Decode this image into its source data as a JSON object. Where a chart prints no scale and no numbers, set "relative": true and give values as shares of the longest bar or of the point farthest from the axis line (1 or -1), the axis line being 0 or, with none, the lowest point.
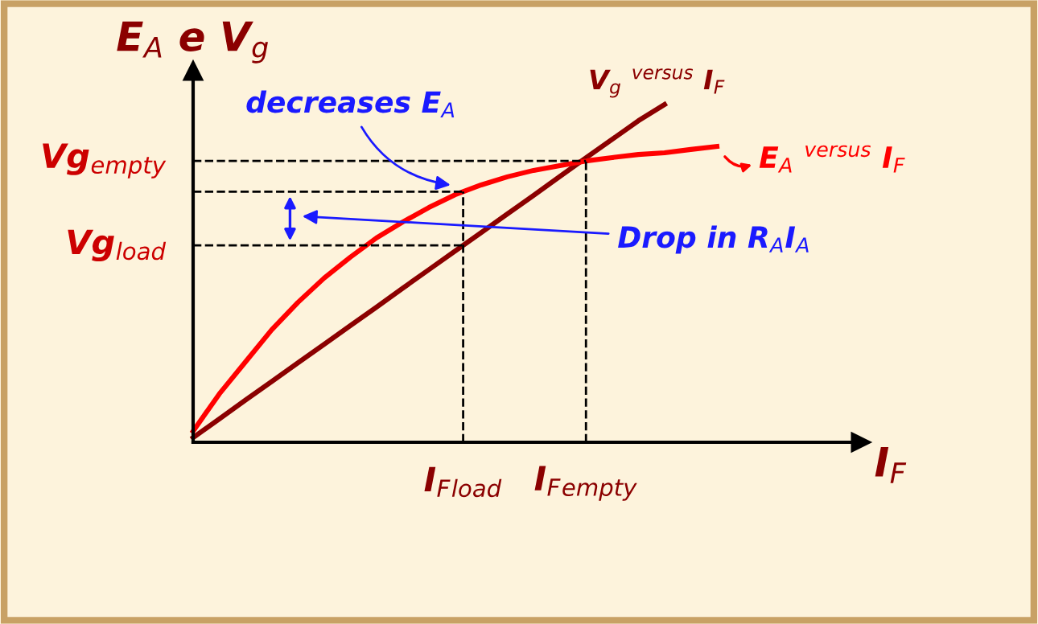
{
  "chart_data": {
    "type": "line",
    "relative": true,
    "xlabel": "I$_{F}$",
    "ylabel": "E$_{A}$ e V$_{g}$",
    "grid": false,
    "marker": "none",
    "line_style": "solid",
    "categories": [
      null,
      null,
      null,
      null,
      null,
      null,
      null,
      null,
      null,
      null,
      null,
      null,
      null,
      null,
      null,
      null,
      null,
      null,
      null,
      null,
      null
    ],
    "series": [
      {
        "name": "V$_{g}$ $^{versus}$ I$_{F}$",
        "color": "#8b0000",
        "values": [
          0.014,
          0.069,
          0.125,
          0.18,
          0.235,
          0.29,
          0.345,
          0.4,
          0.456,
          0.511,
          0.566,
          0.621,
          0.676,
          0.731,
          0.787,
          0.842,
          0.897,
          0.952,
          1.0,
          null,
          null
        ]
      },
      {
        "name": "E$_{A}$ $^{versus}$ I$_{F}$",
        "color": "#ff0000",
        "values": [
          0.033,
          0.143,
          0.238,
          0.333,
          0.414,
          0.486,
          0.548,
          0.605,
          0.652,
          0.695,
          0.733,
          0.762,
          0.786,
          0.805,
          0.819,
          0.833,
          0.843,
          0.852,
          0.857,
          0.867,
          0.876
        ]
      }
    ],
    "ref_lines": [
      {
        "axis": "y",
        "value": 0.833,
        "label": "Vg$_{empty}$",
        "color": "#000000",
        "line_style": "dashed"
      },
      {
        "axis": "y",
        "value": 0.742,
        "label": null,
        "color": "#000000",
        "line_style": "dashed"
      },
      {
        "axis": "y",
        "value": 0.583,
        "label": "Vg$_{load}$",
        "color": "#000000",
        "line_style": "dashed"
      }
    ],
    "annotations": [
      "decreases E$_{A}$",
      "Drop in R$_{A}$I$_{A}$",
      "I$_{F}$$_{load}$",
      "I$_{F}$$_{empty}$"
    ]
  }
}
